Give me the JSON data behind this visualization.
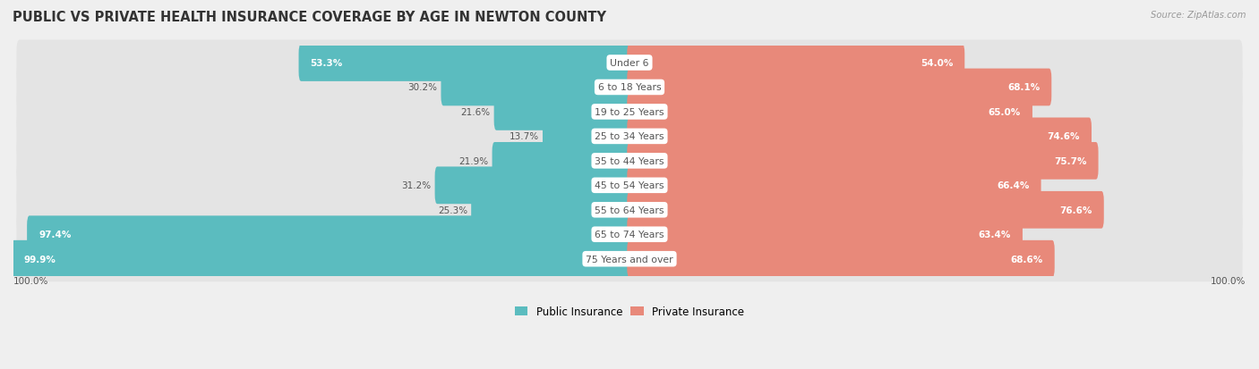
{
  "title": "PUBLIC VS PRIVATE HEALTH INSURANCE COVERAGE BY AGE IN NEWTON COUNTY",
  "source": "Source: ZipAtlas.com",
  "categories": [
    "Under 6",
    "6 to 18 Years",
    "19 to 25 Years",
    "25 to 34 Years",
    "35 to 44 Years",
    "45 to 54 Years",
    "55 to 64 Years",
    "65 to 74 Years",
    "75 Years and over"
  ],
  "public_values": [
    53.3,
    30.2,
    21.6,
    13.7,
    21.9,
    31.2,
    25.3,
    97.4,
    99.9
  ],
  "private_values": [
    54.0,
    68.1,
    65.0,
    74.6,
    75.7,
    66.4,
    76.6,
    63.4,
    68.6
  ],
  "public_color": "#5bbcbf",
  "private_color": "#e8897a",
  "background_color": "#efefef",
  "row_bg_color": "#e4e4e4",
  "row_gap_color": "#efefef",
  "bar_height": 0.72,
  "title_fontsize": 10.5,
  "label_fontsize": 7.8,
  "value_fontsize": 7.5,
  "legend_fontsize": 8.5,
  "max_value": 100.0,
  "bottom_label": "100.0%"
}
